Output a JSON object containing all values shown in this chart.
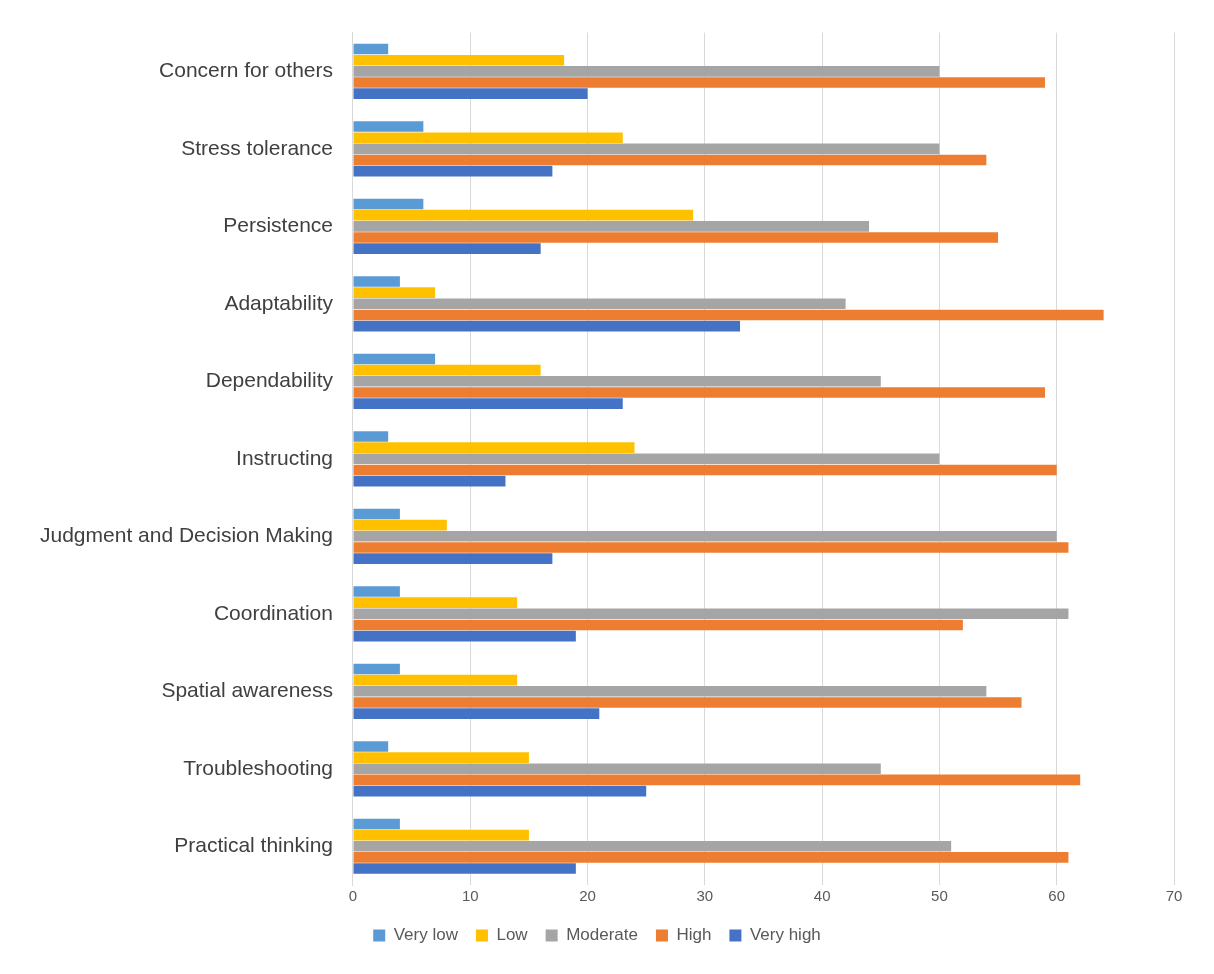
{
  "chart_data": {
    "type": "bar",
    "orientation": "horizontal",
    "categories": [
      "Concern for others",
      "Stress tolerance",
      "Persistence",
      "Adaptability",
      "Dependability",
      "Instructing",
      "Judgment and Decision Making",
      "Coordination",
      "Spatial awareness",
      "Troubleshooting",
      "Practical thinking"
    ],
    "series": [
      {
        "name": "Very low",
        "color": "#5b9bd5",
        "values": [
          3,
          6,
          6,
          4,
          7,
          3,
          4,
          4,
          4,
          3,
          4
        ]
      },
      {
        "name": "Low",
        "color": "#ffc000",
        "values": [
          18,
          23,
          29,
          7,
          16,
          24,
          8,
          14,
          14,
          15,
          15
        ]
      },
      {
        "name": "Moderate",
        "color": "#a5a5a5",
        "values": [
          50,
          50,
          44,
          42,
          45,
          50,
          60,
          61,
          54,
          45,
          51
        ]
      },
      {
        "name": "High",
        "color": "#ed7d31",
        "values": [
          59,
          54,
          55,
          64,
          59,
          60,
          61,
          52,
          57,
          62,
          61
        ]
      },
      {
        "name": "Very high",
        "color": "#4472c4",
        "values": [
          20,
          17,
          16,
          33,
          23,
          13,
          17,
          19,
          21,
          25,
          19
        ]
      }
    ],
    "xlim": [
      0,
      70
    ],
    "xticks": [
      0,
      10,
      20,
      30,
      40,
      50,
      60,
      70
    ],
    "grid": "x",
    "legend": "bottom"
  }
}
